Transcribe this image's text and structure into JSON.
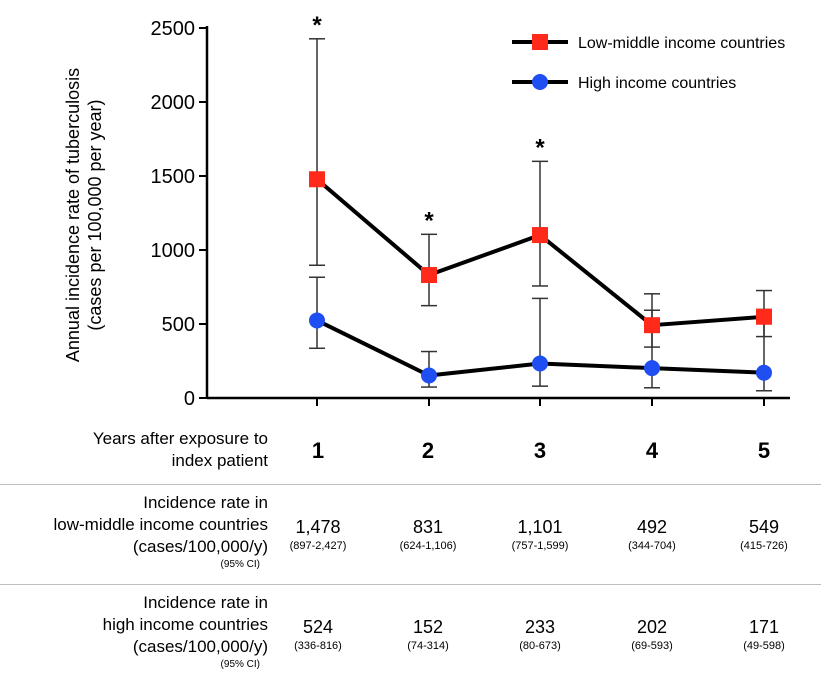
{
  "chart_data": {
    "type": "line",
    "ylabel": [
      "Annual incidence rate of tuberculosis",
      "(cases per 100,000 per year)"
    ],
    "ylim": [
      0,
      2500
    ],
    "yticks": [
      0,
      500,
      1000,
      1500,
      2000,
      2500
    ],
    "categories": [
      "1",
      "2",
      "3",
      "4",
      "5"
    ],
    "legend_position": "top-right",
    "series": [
      {
        "name": "Low-middle income countries",
        "color": "#ff2a1a",
        "marker": "square",
        "values": [
          1478,
          831,
          1101,
          492,
          549
        ],
        "ci_low": [
          897,
          624,
          757,
          344,
          415
        ],
        "ci_high": [
          2427,
          1106,
          1599,
          704,
          726
        ]
      },
      {
        "name": "High income countries",
        "color": "#1f4ff2",
        "marker": "circle",
        "values": [
          524,
          152,
          233,
          202,
          171
        ],
        "ci_low": [
          336,
          74,
          80,
          69,
          49
        ],
        "ci_high": [
          816,
          314,
          673,
          593,
          598
        ]
      }
    ],
    "significance_marks": [
      "*",
      "*",
      "*",
      "",
      ""
    ]
  },
  "table": {
    "years_label": [
      "Years after exposure to",
      "index patient"
    ],
    "years": [
      "1",
      "2",
      "3",
      "4",
      "5"
    ],
    "lmic_label": [
      "Incidence rate in",
      "low-middle income countries",
      "(cases/100,000/y)"
    ],
    "lmic_ci_note": "(95% CI)",
    "lmic_values": [
      "1,478",
      "831",
      "1,101",
      "492",
      "549"
    ],
    "lmic_ci": [
      "(897-2,427)",
      "(624-1,106)",
      "(757-1,599)",
      "(344-704)",
      "(415-726)"
    ],
    "hic_label": [
      "Incidence rate in",
      "high income countries",
      "(cases/100,000/y)"
    ],
    "hic_ci_note": "(95% CI)",
    "hic_values": [
      "524",
      "152",
      "233",
      "202",
      "171"
    ],
    "hic_ci": [
      "(336-816)",
      "(74-314)",
      "(80-673)",
      "(69-593)",
      "(49-598)"
    ]
  }
}
